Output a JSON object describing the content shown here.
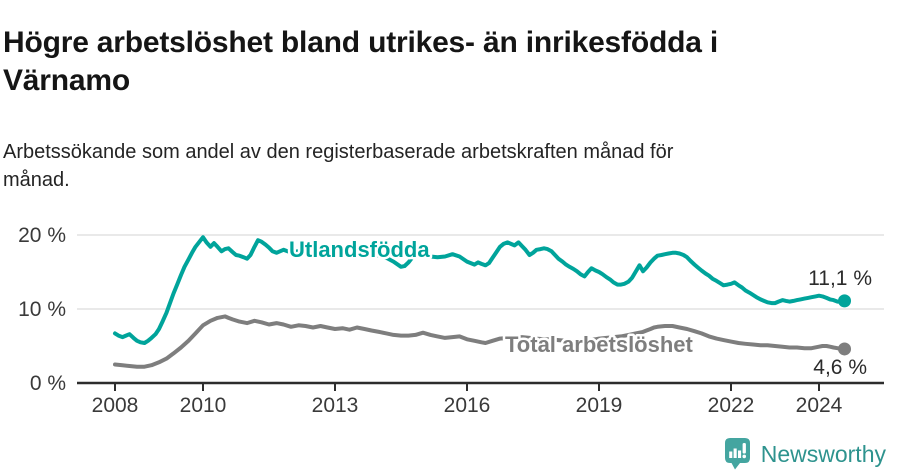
{
  "header": {
    "title": "Högre arbetslöshet bland utrikes- än inrikesfödda i Värnamo",
    "subtitle": "Arbetssökande som andel av den registerbaserade arbetskraften månad för månad."
  },
  "footer": {
    "brand": "Newsworthy",
    "brand_color": "#2e938e",
    "icon": "newsworthy-speech-bubble-barchart-icon",
    "icon_color": "#44a5a0"
  },
  "chart_data": {
    "type": "line",
    "title": "Högre arbetslöshet bland utrikes- än inrikesfödda i Värnamo",
    "xlabel": "",
    "ylabel": "",
    "grid": true,
    "xlim": [
      2007.2,
      2025.4
    ],
    "ylim": [
      0,
      21.5
    ],
    "y_ticks": [
      {
        "value": 0,
        "label": "0 %"
      },
      {
        "value": 10,
        "label": "10 %"
      },
      {
        "value": 20,
        "label": "20 %"
      }
    ],
    "x_ticks": [
      {
        "value": 2008,
        "label": "2008"
      },
      {
        "value": 2010,
        "label": "2010"
      },
      {
        "value": 2013,
        "label": "2013"
      },
      {
        "value": 2016,
        "label": "2016"
      },
      {
        "value": 2019,
        "label": "2019"
      },
      {
        "value": 2022,
        "label": "2022"
      },
      {
        "value": 2024,
        "label": "2024"
      }
    ],
    "colors": {
      "grid": "#e2e2e2",
      "axis": "#2d2d2d",
      "tick_text": "#3a3a3a",
      "value_label": "#2b2b2b"
    },
    "series": [
      {
        "name": "Utlandsfödda",
        "color": "#00a49b",
        "end_label": "11,1 %",
        "end_value": 11.1,
        "points": [
          [
            2008.0,
            6.7
          ],
          [
            2008.08,
            6.4
          ],
          [
            2008.17,
            6.2
          ],
          [
            2008.25,
            6.4
          ],
          [
            2008.33,
            6.6
          ],
          [
            2008.42,
            6.1
          ],
          [
            2008.5,
            5.7
          ],
          [
            2008.58,
            5.5
          ],
          [
            2008.67,
            5.4
          ],
          [
            2008.75,
            5.7
          ],
          [
            2008.83,
            6.1
          ],
          [
            2008.92,
            6.6
          ],
          [
            2009.0,
            7.3
          ],
          [
            2009.08,
            8.3
          ],
          [
            2009.17,
            9.5
          ],
          [
            2009.25,
            10.8
          ],
          [
            2009.33,
            12.1
          ],
          [
            2009.42,
            13.4
          ],
          [
            2009.5,
            14.6
          ],
          [
            2009.58,
            15.7
          ],
          [
            2009.67,
            16.7
          ],
          [
            2009.75,
            17.6
          ],
          [
            2009.83,
            18.4
          ],
          [
            2009.92,
            19.1
          ],
          [
            2010.0,
            19.7
          ],
          [
            2010.08,
            19.0
          ],
          [
            2010.17,
            18.4
          ],
          [
            2010.25,
            18.9
          ],
          [
            2010.33,
            18.4
          ],
          [
            2010.42,
            17.8
          ],
          [
            2010.5,
            18.1
          ],
          [
            2010.58,
            18.2
          ],
          [
            2010.67,
            17.7
          ],
          [
            2010.75,
            17.3
          ],
          [
            2010.83,
            17.2
          ],
          [
            2010.92,
            17.0
          ],
          [
            2011.0,
            16.8
          ],
          [
            2011.08,
            17.3
          ],
          [
            2011.17,
            18.4
          ],
          [
            2011.25,
            19.3
          ],
          [
            2011.33,
            19.1
          ],
          [
            2011.42,
            18.7
          ],
          [
            2011.5,
            18.3
          ],
          [
            2011.58,
            17.8
          ],
          [
            2011.67,
            17.6
          ],
          [
            2011.75,
            17.8
          ],
          [
            2011.83,
            18.0
          ],
          [
            2011.92,
            17.8
          ],
          [
            2012.0,
            17.7
          ],
          [
            2012.17,
            17.8
          ],
          [
            2012.33,
            17.9
          ],
          [
            2012.5,
            17.6
          ],
          [
            2012.67,
            17.7
          ],
          [
            2012.83,
            17.8
          ],
          [
            2013.0,
            17.7
          ],
          [
            2013.17,
            17.8
          ],
          [
            2013.33,
            17.7
          ],
          [
            2013.5,
            17.6
          ],
          [
            2013.67,
            17.5
          ],
          [
            2013.83,
            17.4
          ],
          [
            2014.0,
            17.2
          ],
          [
            2014.17,
            16.9
          ],
          [
            2014.33,
            16.4
          ],
          [
            2014.5,
            15.7
          ],
          [
            2014.58,
            15.8
          ],
          [
            2014.67,
            16.3
          ],
          [
            2014.75,
            16.9
          ],
          [
            2014.83,
            17.1
          ],
          [
            2015.0,
            17.3
          ],
          [
            2015.17,
            17.1
          ],
          [
            2015.33,
            17.0
          ],
          [
            2015.5,
            17.1
          ],
          [
            2015.67,
            17.4
          ],
          [
            2015.83,
            17.1
          ],
          [
            2016.0,
            16.4
          ],
          [
            2016.17,
            16.0
          ],
          [
            2016.25,
            16.3
          ],
          [
            2016.33,
            16.1
          ],
          [
            2016.42,
            15.9
          ],
          [
            2016.5,
            16.2
          ],
          [
            2016.58,
            16.9
          ],
          [
            2016.67,
            17.7
          ],
          [
            2016.75,
            18.4
          ],
          [
            2016.83,
            18.8
          ],
          [
            2016.92,
            19.0
          ],
          [
            2017.0,
            18.8
          ],
          [
            2017.08,
            18.6
          ],
          [
            2017.17,
            19.0
          ],
          [
            2017.25,
            18.5
          ],
          [
            2017.33,
            18.0
          ],
          [
            2017.42,
            17.3
          ],
          [
            2017.5,
            17.6
          ],
          [
            2017.58,
            18.0
          ],
          [
            2017.67,
            18.1
          ],
          [
            2017.75,
            18.2
          ],
          [
            2017.83,
            18.1
          ],
          [
            2017.92,
            17.8
          ],
          [
            2018.0,
            17.3
          ],
          [
            2018.08,
            16.8
          ],
          [
            2018.17,
            16.4
          ],
          [
            2018.25,
            16.0
          ],
          [
            2018.33,
            15.7
          ],
          [
            2018.42,
            15.4
          ],
          [
            2018.5,
            15.1
          ],
          [
            2018.58,
            14.7
          ],
          [
            2018.67,
            14.4
          ],
          [
            2018.75,
            15.0
          ],
          [
            2018.83,
            15.5
          ],
          [
            2018.92,
            15.2
          ],
          [
            2019.0,
            15.0
          ],
          [
            2019.08,
            14.7
          ],
          [
            2019.17,
            14.3
          ],
          [
            2019.25,
            14.0
          ],
          [
            2019.33,
            13.6
          ],
          [
            2019.42,
            13.3
          ],
          [
            2019.5,
            13.3
          ],
          [
            2019.58,
            13.4
          ],
          [
            2019.67,
            13.7
          ],
          [
            2019.75,
            14.2
          ],
          [
            2019.83,
            15.0
          ],
          [
            2019.92,
            15.9
          ],
          [
            2020.0,
            15.1
          ],
          [
            2020.08,
            15.6
          ],
          [
            2020.17,
            16.3
          ],
          [
            2020.25,
            16.8
          ],
          [
            2020.33,
            17.2
          ],
          [
            2020.42,
            17.3
          ],
          [
            2020.5,
            17.4
          ],
          [
            2020.58,
            17.5
          ],
          [
            2020.67,
            17.6
          ],
          [
            2020.75,
            17.6
          ],
          [
            2020.83,
            17.5
          ],
          [
            2020.92,
            17.3
          ],
          [
            2021.0,
            17.0
          ],
          [
            2021.08,
            16.5
          ],
          [
            2021.17,
            16.0
          ],
          [
            2021.25,
            15.6
          ],
          [
            2021.33,
            15.2
          ],
          [
            2021.42,
            14.8
          ],
          [
            2021.5,
            14.5
          ],
          [
            2021.58,
            14.1
          ],
          [
            2021.67,
            13.8
          ],
          [
            2021.75,
            13.5
          ],
          [
            2021.83,
            13.2
          ],
          [
            2021.92,
            13.3
          ],
          [
            2022.0,
            13.4
          ],
          [
            2022.08,
            13.6
          ],
          [
            2022.17,
            13.2
          ],
          [
            2022.25,
            12.9
          ],
          [
            2022.33,
            12.5
          ],
          [
            2022.42,
            12.2
          ],
          [
            2022.5,
            11.9
          ],
          [
            2022.58,
            11.6
          ],
          [
            2022.67,
            11.3
          ],
          [
            2022.75,
            11.1
          ],
          [
            2022.83,
            10.9
          ],
          [
            2022.92,
            10.8
          ],
          [
            2023.0,
            10.8
          ],
          [
            2023.08,
            11.0
          ],
          [
            2023.17,
            11.2
          ],
          [
            2023.25,
            11.1
          ],
          [
            2023.33,
            11.0
          ],
          [
            2023.42,
            11.1
          ],
          [
            2023.5,
            11.2
          ],
          [
            2023.58,
            11.3
          ],
          [
            2023.67,
            11.4
          ],
          [
            2023.75,
            11.5
          ],
          [
            2023.83,
            11.6
          ],
          [
            2023.92,
            11.7
          ],
          [
            2024.0,
            11.8
          ],
          [
            2024.08,
            11.7
          ],
          [
            2024.17,
            11.5
          ],
          [
            2024.25,
            11.3
          ],
          [
            2024.33,
            11.2
          ],
          [
            2024.42,
            11.0
          ],
          [
            2024.5,
            11.0
          ],
          [
            2024.58,
            11.1
          ]
        ]
      },
      {
        "name": "Total arbetslöshet",
        "color": "#7e7e7e",
        "end_label": "4,6 %",
        "end_value": 4.6,
        "points": [
          [
            2008.0,
            2.5
          ],
          [
            2008.17,
            2.4
          ],
          [
            2008.33,
            2.3
          ],
          [
            2008.5,
            2.2
          ],
          [
            2008.67,
            2.2
          ],
          [
            2008.83,
            2.4
          ],
          [
            2009.0,
            2.8
          ],
          [
            2009.17,
            3.3
          ],
          [
            2009.33,
            4.0
          ],
          [
            2009.5,
            4.8
          ],
          [
            2009.67,
            5.7
          ],
          [
            2009.83,
            6.7
          ],
          [
            2010.0,
            7.8
          ],
          [
            2010.17,
            8.4
          ],
          [
            2010.33,
            8.8
          ],
          [
            2010.5,
            9.0
          ],
          [
            2010.58,
            8.8
          ],
          [
            2010.67,
            8.6
          ],
          [
            2010.83,
            8.3
          ],
          [
            2011.0,
            8.1
          ],
          [
            2011.17,
            8.4
          ],
          [
            2011.33,
            8.2
          ],
          [
            2011.5,
            7.9
          ],
          [
            2011.67,
            8.1
          ],
          [
            2011.83,
            7.9
          ],
          [
            2012.0,
            7.6
          ],
          [
            2012.17,
            7.8
          ],
          [
            2012.33,
            7.7
          ],
          [
            2012.5,
            7.5
          ],
          [
            2012.67,
            7.7
          ],
          [
            2012.83,
            7.5
          ],
          [
            2013.0,
            7.3
          ],
          [
            2013.17,
            7.4
          ],
          [
            2013.33,
            7.2
          ],
          [
            2013.5,
            7.5
          ],
          [
            2013.67,
            7.3
          ],
          [
            2013.83,
            7.1
          ],
          [
            2014.0,
            6.9
          ],
          [
            2014.17,
            6.7
          ],
          [
            2014.33,
            6.5
          ],
          [
            2014.5,
            6.4
          ],
          [
            2014.67,
            6.4
          ],
          [
            2014.83,
            6.5
          ],
          [
            2015.0,
            6.8
          ],
          [
            2015.17,
            6.5
          ],
          [
            2015.33,
            6.3
          ],
          [
            2015.5,
            6.1
          ],
          [
            2015.67,
            6.2
          ],
          [
            2015.83,
            6.3
          ],
          [
            2016.0,
            5.9
          ],
          [
            2016.17,
            5.7
          ],
          [
            2016.33,
            5.5
          ],
          [
            2016.42,
            5.4
          ],
          [
            2016.58,
            5.7
          ],
          [
            2016.75,
            6.0
          ],
          [
            2016.92,
            6.1
          ],
          [
            2017.08,
            6.0
          ],
          [
            2017.25,
            6.2
          ],
          [
            2017.42,
            6.1
          ],
          [
            2017.58,
            6.0
          ],
          [
            2017.75,
            5.9
          ],
          [
            2017.92,
            5.9
          ],
          [
            2018.08,
            5.8
          ],
          [
            2018.25,
            5.7
          ],
          [
            2018.42,
            5.6
          ],
          [
            2018.58,
            5.6
          ],
          [
            2018.75,
            5.8
          ],
          [
            2018.92,
            5.9
          ],
          [
            2019.0,
            6.0
          ],
          [
            2019.17,
            6.1
          ],
          [
            2019.33,
            6.2
          ],
          [
            2019.5,
            6.3
          ],
          [
            2019.67,
            6.5
          ],
          [
            2019.83,
            6.7
          ],
          [
            2020.0,
            6.9
          ],
          [
            2020.08,
            7.1
          ],
          [
            2020.17,
            7.3
          ],
          [
            2020.25,
            7.5
          ],
          [
            2020.33,
            7.6
          ],
          [
            2020.5,
            7.7
          ],
          [
            2020.67,
            7.7
          ],
          [
            2020.83,
            7.5
          ],
          [
            2021.0,
            7.3
          ],
          [
            2021.17,
            7.0
          ],
          [
            2021.33,
            6.7
          ],
          [
            2021.5,
            6.3
          ],
          [
            2021.67,
            6.0
          ],
          [
            2021.83,
            5.8
          ],
          [
            2022.0,
            5.6
          ],
          [
            2022.17,
            5.4
          ],
          [
            2022.33,
            5.3
          ],
          [
            2022.5,
            5.2
          ],
          [
            2022.67,
            5.1
          ],
          [
            2022.83,
            5.1
          ],
          [
            2023.0,
            5.0
          ],
          [
            2023.17,
            4.9
          ],
          [
            2023.33,
            4.8
          ],
          [
            2023.5,
            4.8
          ],
          [
            2023.67,
            4.7
          ],
          [
            2023.83,
            4.7
          ],
          [
            2024.0,
            4.9
          ],
          [
            2024.08,
            5.0
          ],
          [
            2024.17,
            5.0
          ],
          [
            2024.25,
            4.9
          ],
          [
            2024.33,
            4.8
          ],
          [
            2024.42,
            4.7
          ],
          [
            2024.5,
            4.6
          ],
          [
            2024.58,
            4.6
          ]
        ]
      }
    ]
  }
}
